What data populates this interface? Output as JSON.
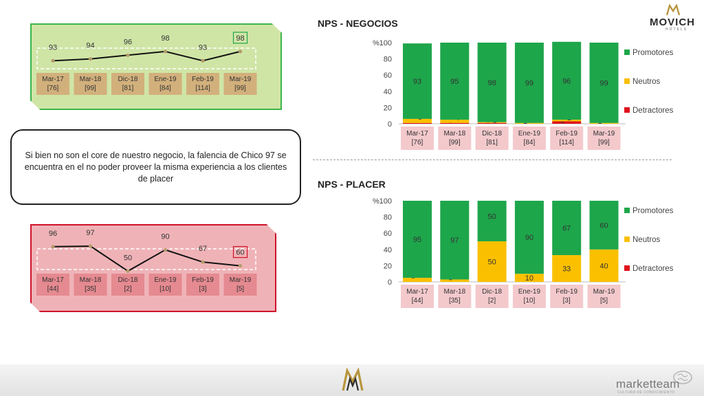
{
  "brand": {
    "name": "MOVICH",
    "sub": "HOTELS"
  },
  "callout": {
    "text": "Si bien no son el core de nuestro negocio, la falencia de Chico 97 se encuentra en el no poder proveer la misma experiencia a los clientes de placer"
  },
  "footer": {
    "logo_text": "marketteam",
    "logo_sub": "CULTURA DE CONOCIMIENTO"
  },
  "colors": {
    "promotores": "#1ea64b",
    "neutros": "#fac000",
    "detractores": "#e0101c",
    "axis_box": "#f3c9cc",
    "trend_green_box": "#d2b07c",
    "trend_red_box": "#e58a90"
  },
  "chart_data": [
    {
      "id": "trend-negocios",
      "type": "line",
      "categories": [
        "Mar-17",
        "Mar-18",
        "Dic-18",
        "Ene-19",
        "Feb-19",
        "Mar-19"
      ],
      "bases": [
        "[76]",
        "[99]",
        "[81]",
        "[84]",
        "[114]",
        "[99]"
      ],
      "values": [
        93,
        94,
        96,
        98,
        93,
        98
      ],
      "ylim": [
        85,
        105
      ],
      "highlight_index": 5
    },
    {
      "id": "trend-placer",
      "type": "line",
      "categories": [
        "Mar-17",
        "Mar-18",
        "Dic-18",
        "Ene-19",
        "Feb-19",
        "Mar-19"
      ],
      "bases": [
        "[44]",
        "[35]",
        "[2]",
        "[10]",
        "[3]",
        "[5]"
      ],
      "values": [
        96,
        97,
        50,
        90,
        67,
        60
      ],
      "ylim": [
        40,
        110
      ],
      "highlight_index": 5
    },
    {
      "id": "nps-negocios",
      "type": "bar",
      "stacked": true,
      "title": "NPS - NEGOCIOS",
      "ylabel": "%",
      "ylim": [
        0,
        100
      ],
      "yticks": [
        0,
        20,
        40,
        60,
        80,
        100
      ],
      "categories": [
        "Mar-17",
        "Mar-18",
        "Dic-18",
        "Ene-19",
        "Feb-19",
        "Mar-19"
      ],
      "bases": [
        "[76]",
        "[99]",
        "[81]",
        "[84]",
        "[114]",
        "[99]"
      ],
      "series": [
        {
          "name": "Detractores",
          "key": "detractores",
          "values": [
            1,
            1,
            1,
            0,
            3,
            0
          ],
          "labels": [
            "",
            "1",
            "1",
            "",
            "3",
            ""
          ]
        },
        {
          "name": "Neutros",
          "key": "neutros",
          "values": [
            5,
            4,
            1,
            1,
            2,
            1
          ],
          "labels": [
            "5",
            "4",
            "1",
            "1",
            "2",
            "1"
          ]
        },
        {
          "name": "Promotores",
          "key": "promotores",
          "values": [
            93,
            95,
            98,
            99,
            96,
            99
          ],
          "labels": [
            "93",
            "95",
            "98",
            "99",
            "96",
            "99"
          ]
        }
      ],
      "legend": "right"
    },
    {
      "id": "nps-placer",
      "type": "bar",
      "stacked": true,
      "title": "NPS - PLACER",
      "ylabel": "%",
      "ylim": [
        0,
        100
      ],
      "yticks": [
        0,
        20,
        40,
        60,
        80,
        100
      ],
      "categories": [
        "Mar-17",
        "Mar-18",
        "Dic-18",
        "Ene-19",
        "Feb-19",
        "Mar-19"
      ],
      "bases": [
        "[44]",
        "[35]",
        "[2]",
        "[10]",
        "[3]",
        "[5]"
      ],
      "series": [
        {
          "name": "Detractores",
          "key": "detractores",
          "values": [
            0,
            0,
            0,
            0,
            0,
            0
          ],
          "labels": [
            "",
            "",
            "",
            "",
            "",
            ""
          ]
        },
        {
          "name": "Neutros",
          "key": "neutros",
          "values": [
            5,
            3,
            50,
            10,
            33,
            40
          ],
          "labels": [
            "5",
            "3",
            "50",
            "10",
            "33",
            "40"
          ]
        },
        {
          "name": "Promotores",
          "key": "promotores",
          "values": [
            95,
            97,
            50,
            90,
            67,
            60
          ],
          "labels": [
            "95",
            "97",
            "50",
            "90",
            "67",
            "60"
          ]
        }
      ],
      "legend": "right"
    }
  ]
}
